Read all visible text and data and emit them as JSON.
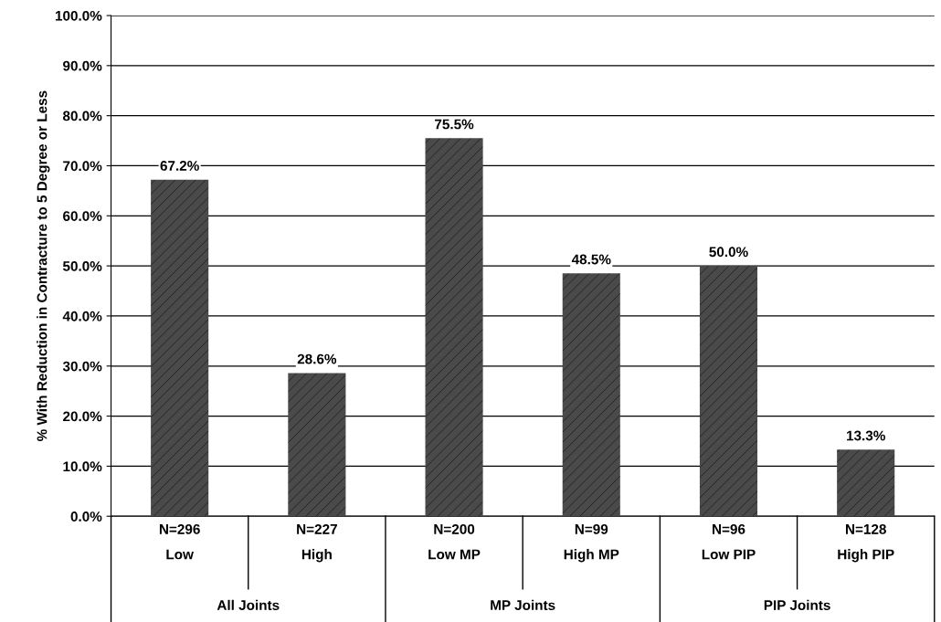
{
  "chart_data": {
    "type": "bar",
    "ylabel": "% With Reduction in Contracture to 5 Degree or Less",
    "categories": [
      "N=296\nLow",
      "N=227\nHigh",
      "N=200\nLow MP",
      "N=99\nHigh MP",
      "N=96\nLow PIP",
      "N=128\nHigh PIP"
    ],
    "values": [
      67.2,
      28.6,
      75.5,
      48.5,
      50.0,
      13.3
    ],
    "value_labels": [
      "67.2%",
      "28.6%",
      "75.5%",
      "48.5%",
      "50.0%",
      "13.3%"
    ],
    "color": "#4a4a4a",
    "annotations": [
      "All Joints",
      "MP Joints",
      "PIP Joints"
    ],
    "ylim": [
      0,
      100
    ],
    "yticks": [
      {
        "value": 0,
        "label": "0.0%"
      },
      {
        "value": 10,
        "label": "10.0%"
      },
      {
        "value": 20,
        "label": "20.0%"
      },
      {
        "value": 30,
        "label": "30.0%"
      },
      {
        "value": 40,
        "label": "40.0%"
      },
      {
        "value": 50,
        "label": "50.0%"
      },
      {
        "value": 60,
        "label": "60.0%"
      },
      {
        "value": 70,
        "label": "70.0%"
      },
      {
        "value": 80,
        "label": "80.0%"
      },
      {
        "value": 90,
        "label": "90.0%"
      },
      {
        "value": 100,
        "label": "100.0%"
      }
    ],
    "grid": "y"
  }
}
